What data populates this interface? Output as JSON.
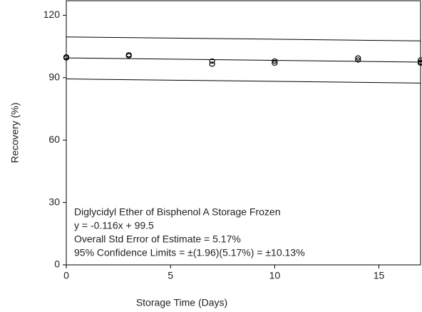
{
  "chart_data": {
    "type": "scatter",
    "x_label": "Storage Time (Days)",
    "y_label": "Recovery (%)",
    "annotations": [
      "Diglycidyl Ether of Bisphenol A Storage Frozen",
      "y = -0.116x + 99.5",
      "Overall Std Error of Estimate = 5.17%",
      "95% Confidence Limits = ±(1.96)(5.17%) = ±10.13%"
    ],
    "xlim": [
      0,
      17
    ],
    "ylim": [
      0,
      127
    ],
    "xticks": [
      0,
      5,
      10,
      15
    ],
    "yticks": [
      0,
      30,
      60,
      90,
      120
    ],
    "series": [
      {
        "color": "#000000",
        "x": [
          0,
          0,
          3,
          3,
          7,
          7,
          10,
          10,
          14,
          14,
          17,
          17,
          17
        ],
        "values": [
          99.5,
          100,
          100.5,
          101,
          98,
          96.5,
          98,
          97,
          99.5,
          98.5,
          98.5,
          97.5,
          97
        ]
      }
    ],
    "lines": [
      {
        "color": "#000000",
        "x": [
          0,
          17
        ],
        "values": [
          109.6,
          107.7
        ]
      },
      {
        "color": "#000000",
        "x": [
          0,
          17
        ],
        "values": [
          99.5,
          97.5
        ]
      },
      {
        "color": "#000000",
        "x": [
          0,
          17
        ],
        "values": [
          89.4,
          87.4
        ]
      }
    ]
  }
}
